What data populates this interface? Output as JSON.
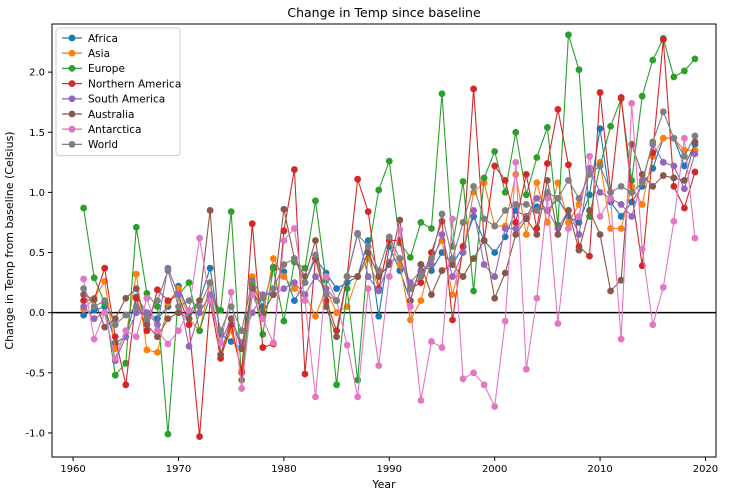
{
  "chart_data": {
    "type": "line",
    "title": "Change in Temp since baseline",
    "xlabel": "Year",
    "ylabel": "Change in Temp from baseline (Celsius)",
    "xlim": [
      1958,
      2021
    ],
    "ylim": [
      -1.2,
      2.4
    ],
    "xticks": [
      1960,
      1970,
      1980,
      1990,
      2000,
      2010,
      2020
    ],
    "yticks": [
      -1.0,
      -0.5,
      0.0,
      0.5,
      1.0,
      1.5,
      2.0
    ],
    "grid": false,
    "zero_line": true,
    "legend_position": "top-left",
    "x": [
      1961,
      1962,
      1963,
      1964,
      1965,
      1966,
      1967,
      1968,
      1969,
      1970,
      1971,
      1972,
      1973,
      1974,
      1975,
      1976,
      1977,
      1978,
      1979,
      1980,
      1981,
      1982,
      1983,
      1984,
      1985,
      1986,
      1987,
      1988,
      1989,
      1990,
      1991,
      1992,
      1993,
      1994,
      1995,
      1996,
      1997,
      1998,
      1999,
      2000,
      2001,
      2002,
      2003,
      2004,
      2005,
      2006,
      2007,
      2008,
      2009,
      2010,
      2011,
      2012,
      2013,
      2014,
      2015,
      2016,
      2017,
      2018,
      2019
    ],
    "series": [
      {
        "name": "Africa",
        "color": "#1f77b4",
        "values": [
          -0.02,
          0.02,
          0.05,
          -0.25,
          -0.2,
          0.13,
          0.0,
          -0.05,
          0.05,
          0.22,
          0.0,
          0.1,
          0.37,
          -0.18,
          -0.24,
          -0.3,
          0.23,
          0.05,
          0.38,
          0.34,
          0.1,
          0.25,
          0.45,
          0.33,
          0.2,
          0.25,
          0.3,
          0.6,
          -0.03,
          0.55,
          0.35,
          0.1,
          0.4,
          0.35,
          0.5,
          0.4,
          0.55,
          0.8,
          0.6,
          0.5,
          0.63,
          0.85,
          0.8,
          0.88,
          0.85,
          0.95,
          0.8,
          0.75,
          0.98,
          1.53,
          0.92,
          0.8,
          0.92,
          1.05,
          1.2,
          1.45,
          1.45,
          1.22,
          1.4
        ]
      },
      {
        "name": "Asia",
        "color": "#ff7f0e",
        "values": [
          0.03,
          0.12,
          0.26,
          -0.3,
          -0.2,
          0.32,
          -0.31,
          -0.33,
          0.08,
          0.2,
          -0.05,
          -0.15,
          0.25,
          -0.35,
          -0.15,
          -0.48,
          0.3,
          -0.03,
          0.45,
          0.3,
          0.2,
          0.15,
          -0.03,
          0.2,
          0.0,
          0.05,
          0.3,
          0.45,
          0.2,
          0.6,
          0.4,
          -0.06,
          0.1,
          0.45,
          0.6,
          0.15,
          0.5,
          1.0,
          1.08,
          0.72,
          0.72,
          1.15,
          0.65,
          1.08,
          0.75,
          1.08,
          0.75,
          0.9,
          1.2,
          1.25,
          0.7,
          0.7,
          1.05,
          0.9,
          1.3,
          1.45,
          1.45,
          1.35,
          1.35
        ]
      },
      {
        "name": "Europe",
        "color": "#2ca02c",
        "values": [
          0.87,
          0.29,
          0.08,
          -0.52,
          -0.42,
          0.71,
          0.16,
          0.05,
          -1.01,
          0.15,
          0.25,
          -0.15,
          0.14,
          0.02,
          0.84,
          -0.56,
          0.25,
          -0.18,
          0.37,
          -0.07,
          0.42,
          0.37,
          0.93,
          0.27,
          -0.6,
          0.2,
          -0.56,
          0.5,
          1.02,
          1.26,
          0.58,
          0.46,
          0.75,
          0.7,
          1.82,
          0.55,
          1.09,
          0.18,
          1.12,
          1.34,
          1.0,
          1.5,
          0.98,
          1.29,
          1.54,
          0.73,
          2.31,
          2.02,
          0.8,
          1.22,
          1.55,
          1.78,
          1.1,
          1.8,
          2.1,
          2.28,
          1.96,
          2.01,
          2.11
        ]
      },
      {
        "name": "Northern America",
        "color": "#d62728",
        "values": [
          0.1,
          0.11,
          0.37,
          -0.2,
          -0.6,
          0.12,
          -0.15,
          0.19,
          0.1,
          0.15,
          -0.1,
          -1.03,
          0.1,
          -0.38,
          -0.1,
          -0.5,
          0.74,
          -0.29,
          -0.26,
          0.68,
          1.19,
          -0.51,
          0.45,
          0.1,
          -0.15,
          0.3,
          1.11,
          0.84,
          0.2,
          0.6,
          0.6,
          0.2,
          0.25,
          0.5,
          0.76,
          -0.06,
          0.55,
          1.86,
          0.6,
          1.22,
          1.1,
          0.75,
          1.15,
          0.7,
          1.24,
          1.69,
          1.23,
          0.55,
          0.47,
          1.83,
          1.0,
          1.79,
          1.0,
          0.39,
          1.33,
          2.27,
          1.05,
          0.87,
          1.17
        ]
      },
      {
        "name": "South America",
        "color": "#9467bd",
        "values": [
          0.05,
          -0.05,
          0.0,
          -0.4,
          -0.2,
          0.0,
          0.0,
          -0.1,
          0.37,
          0.15,
          -0.28,
          0.0,
          0.15,
          -0.25,
          -0.05,
          -0.25,
          0.0,
          0.15,
          0.15,
          0.2,
          0.25,
          0.15,
          0.3,
          0.2,
          0.1,
          0.3,
          0.66,
          0.3,
          0.18,
          0.42,
          0.45,
          0.25,
          0.35,
          0.4,
          0.65,
          0.3,
          0.5,
          0.85,
          0.4,
          0.3,
          0.7,
          0.7,
          0.8,
          0.95,
          0.85,
          0.7,
          0.85,
          0.65,
          1.2,
          1.0,
          0.95,
          0.9,
          0.8,
          1.1,
          1.4,
          1.25,
          1.22,
          1.03,
          1.32
        ]
      },
      {
        "name": "Australia",
        "color": "#8c564b",
        "values": [
          0.15,
          0.11,
          -0.12,
          -0.05,
          0.12,
          0.2,
          -0.1,
          -0.2,
          -0.05,
          0.0,
          -0.05,
          0.1,
          0.85,
          -0.35,
          -0.05,
          -0.3,
          0.2,
          0.0,
          0.15,
          0.86,
          0.45,
          0.3,
          0.6,
          0.05,
          -0.2,
          0.3,
          0.3,
          0.5,
          0.3,
          0.4,
          0.77,
          0.1,
          0.4,
          0.15,
          0.35,
          0.4,
          0.3,
          0.45,
          0.6,
          0.12,
          0.33,
          0.65,
          0.78,
          0.65,
          1.1,
          0.65,
          0.85,
          0.52,
          0.85,
          0.65,
          0.18,
          0.27,
          1.4,
          1.15,
          1.05,
          1.14,
          1.12,
          1.1,
          1.42
        ]
      },
      {
        "name": "Antarctica",
        "color": "#e377c2",
        "values": [
          0.28,
          -0.22,
          0.0,
          -0.38,
          -0.15,
          -0.2,
          0.12,
          -0.15,
          -0.26,
          -0.15,
          0.02,
          0.62,
          0.1,
          -0.25,
          0.17,
          -0.63,
          0.15,
          -0.05,
          -0.25,
          0.6,
          0.7,
          0.1,
          -0.7,
          0.3,
          0.1,
          -0.27,
          -0.7,
          0.2,
          -0.44,
          0.3,
          0.69,
          0.05,
          -0.73,
          -0.24,
          -0.29,
          0.78,
          -0.55,
          -0.5,
          -0.6,
          -0.78,
          -0.07,
          1.25,
          -0.47,
          0.12,
          0.95,
          -0.09,
          0.7,
          0.8,
          1.3,
          0.8,
          0.95,
          -0.22,
          1.74,
          0.53,
          -0.1,
          0.21,
          0.76,
          1.45,
          0.62
        ]
      },
      {
        "name": "World",
        "color": "#7f7f7f",
        "values": [
          0.2,
          0.05,
          0.1,
          -0.1,
          -0.02,
          0.05,
          -0.05,
          0.1,
          0.35,
          0.05,
          0.1,
          0.05,
          0.25,
          -0.15,
          0.05,
          -0.15,
          0.27,
          0.12,
          0.2,
          0.4,
          0.45,
          0.25,
          0.48,
          0.15,
          0.1,
          0.3,
          0.65,
          0.55,
          0.35,
          0.63,
          0.45,
          0.2,
          0.3,
          0.45,
          0.82,
          0.45,
          0.75,
          1.05,
          0.78,
          0.72,
          0.85,
          0.9,
          0.9,
          0.85,
          1.0,
          0.95,
          1.1,
          0.95,
          1.15,
          1.22,
          1.0,
          1.05,
          1.0,
          1.08,
          1.42,
          1.67,
          1.45,
          1.3,
          1.47
        ]
      }
    ]
  }
}
